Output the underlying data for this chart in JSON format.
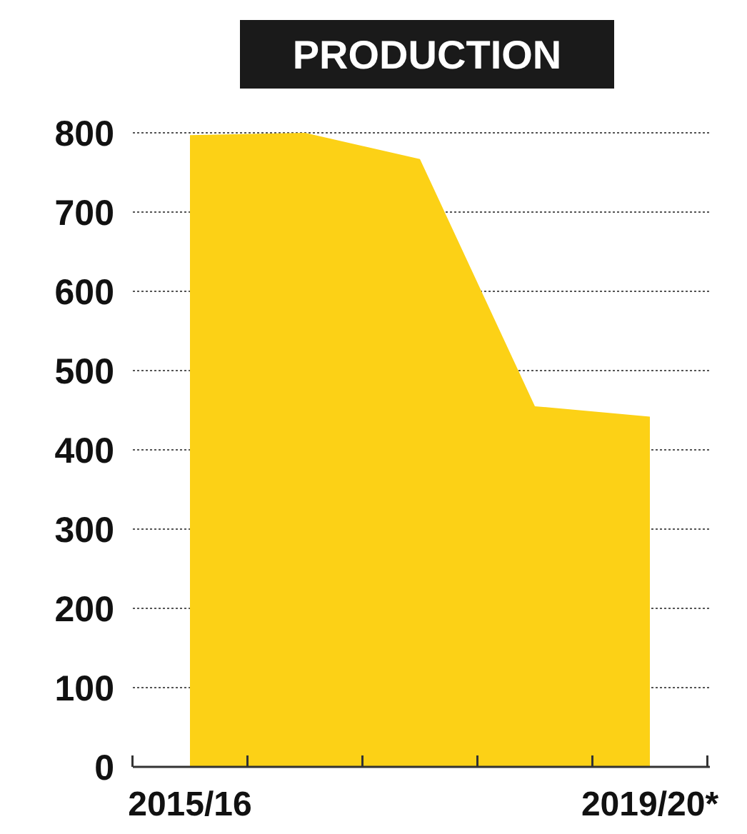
{
  "chart_data": {
    "type": "area",
    "title": "PRODUCTION",
    "categories": [
      "2015/16",
      null,
      null,
      null,
      "2019/20*"
    ],
    "values": [
      797,
      800,
      767,
      455,
      442
    ],
    "color": "#fcd116",
    "ylim": [
      0,
      800
    ],
    "yticks": [
      0,
      100,
      200,
      300,
      400,
      500,
      600,
      700,
      800
    ],
    "grid": "y"
  }
}
